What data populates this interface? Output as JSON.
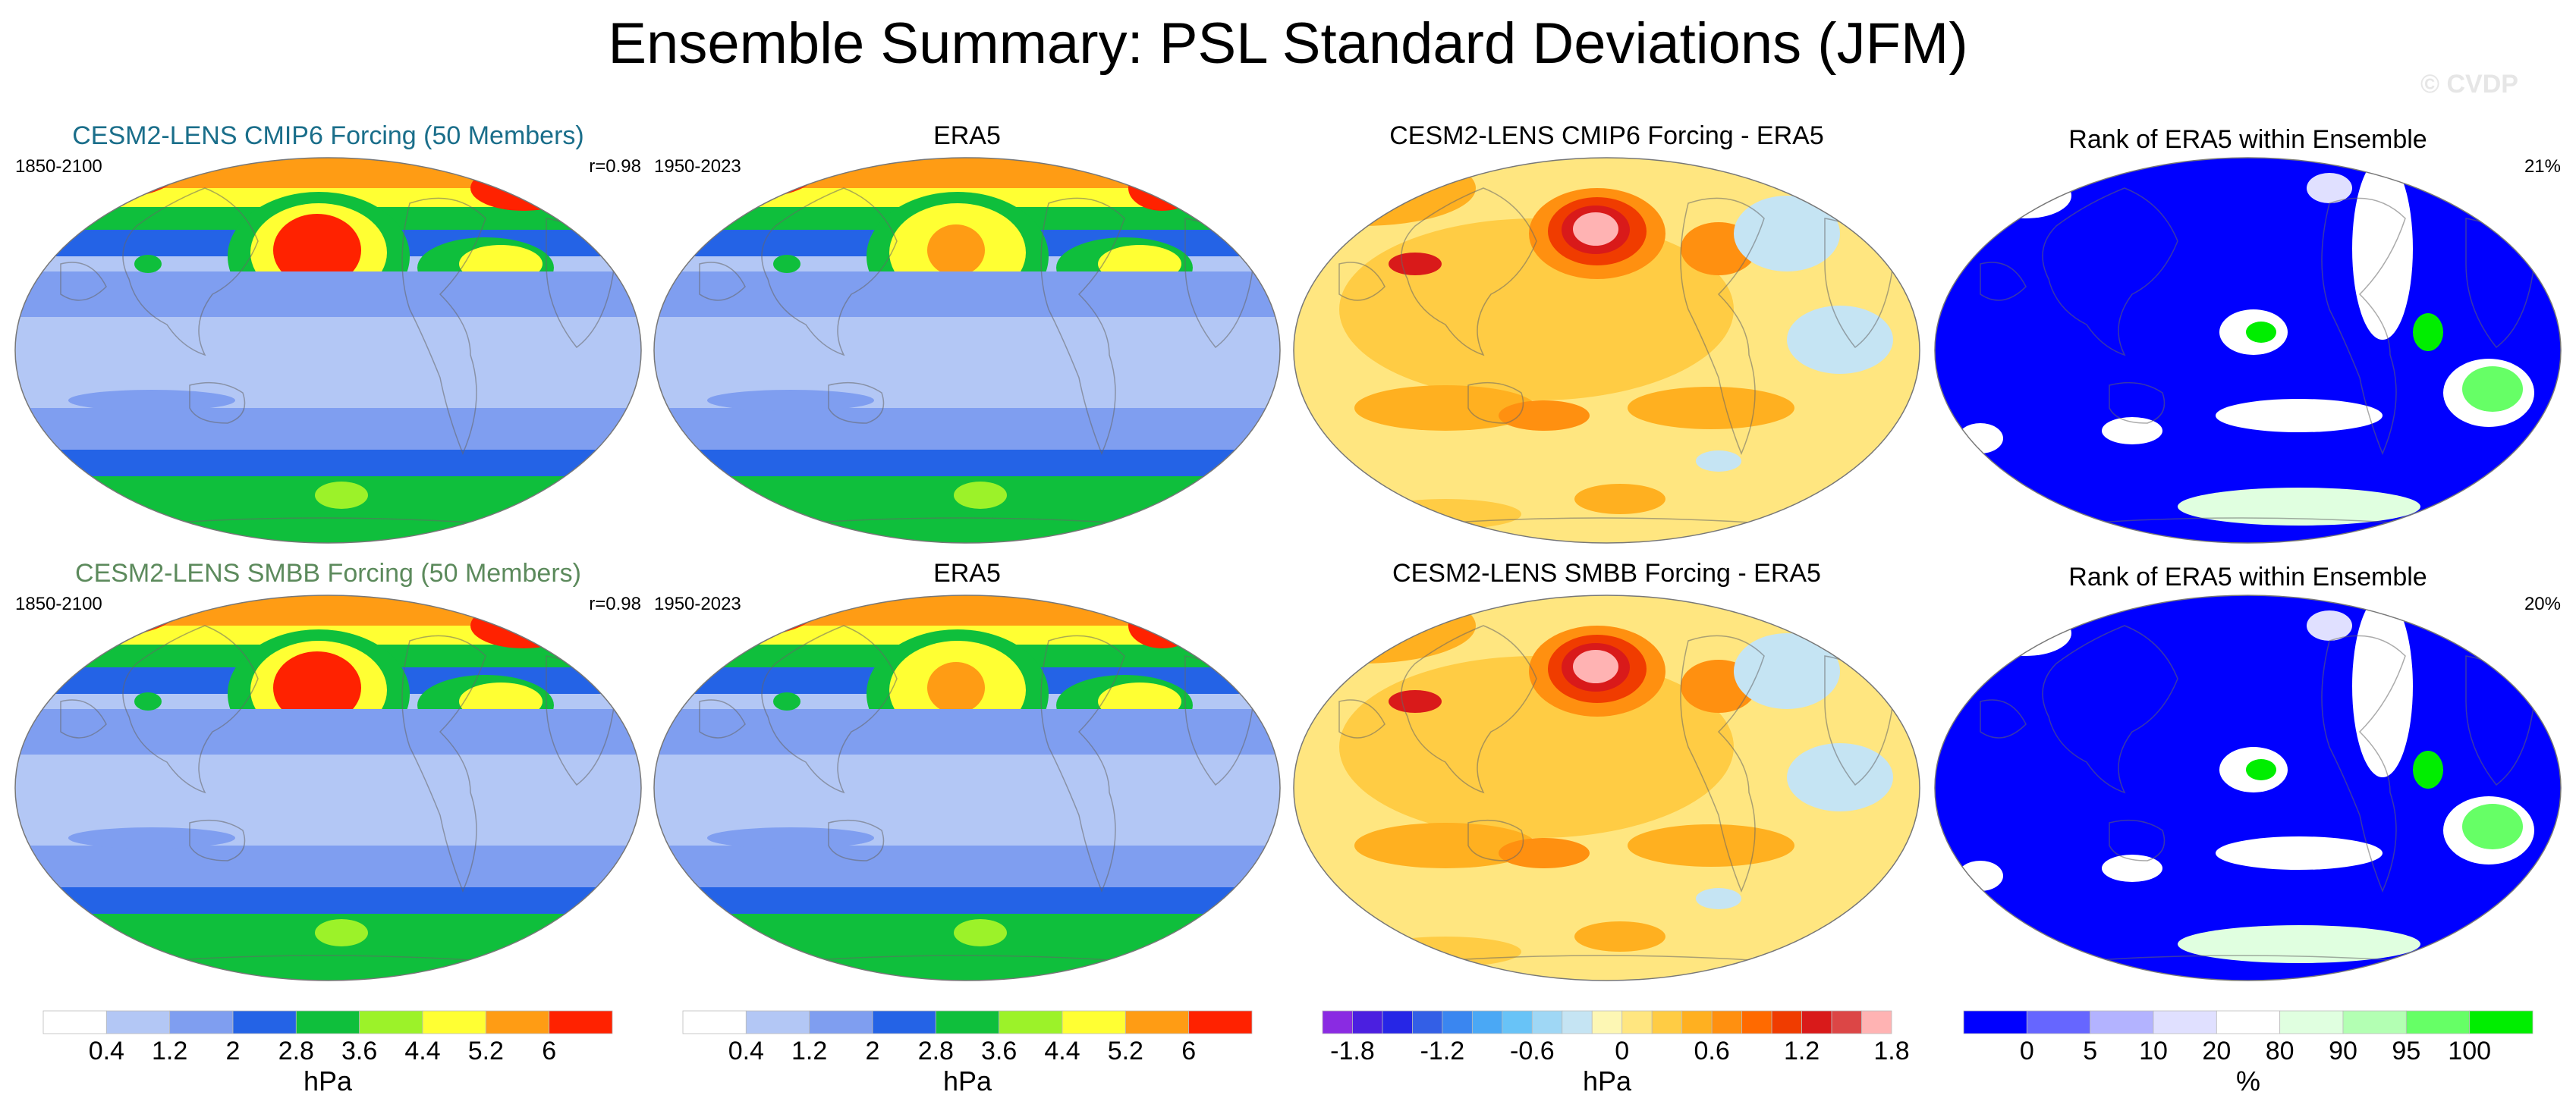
{
  "figure": {
    "title": "Ensemble Summary: PSL Standard Deviations (JFM)",
    "watermark": "© CVDP"
  },
  "panels": [
    {
      "title": "CESM2-LENS CMIP6 Forcing (50 Members)",
      "left": "1850-2100",
      "right": "r=0.98",
      "title_color": "#1a6e8a",
      "kind": "stddev_model"
    },
    {
      "title": "ERA5",
      "left": "1950-2023",
      "right": "",
      "title_color": "#000000",
      "kind": "stddev_obs"
    },
    {
      "title": "CESM2-LENS CMIP6 Forcing - ERA5",
      "left": "",
      "right": "",
      "title_color": "#000000",
      "kind": "difference"
    },
    {
      "title": "Rank of ERA5 within Ensemble",
      "left": "",
      "right": "21%",
      "title_color": "#000000",
      "kind": "rank"
    },
    {
      "title": "CESM2-LENS SMBB Forcing (50 Members)",
      "left": "1850-2100",
      "right": "r=0.98",
      "title_color": "#5c8a5c",
      "kind": "stddev_model"
    },
    {
      "title": "ERA5",
      "left": "1950-2023",
      "right": "",
      "title_color": "#000000",
      "kind": "stddev_obs"
    },
    {
      "title": "CESM2-LENS SMBB Forcing - ERA5",
      "left": "",
      "right": "",
      "title_color": "#000000",
      "kind": "difference"
    },
    {
      "title": "Rank of ERA5 within Ensemble",
      "left": "",
      "right": "20%",
      "title_color": "#000000",
      "kind": "rank"
    }
  ],
  "colorbars": [
    {
      "unit": "hPa",
      "labels": [
        "0.4",
        "1.2",
        "2",
        "2.8",
        "3.6",
        "4.4",
        "5.2",
        "6"
      ],
      "colors": [
        "#ffffff",
        "#b3c7f5",
        "#7f9ef0",
        "#2463e6",
        "#0fbf3c",
        "#9cf229",
        "#ffff33",
        "#ff9c14",
        "#ff2200"
      ]
    },
    {
      "unit": "hPa",
      "labels": [
        "0.4",
        "1.2",
        "2",
        "2.8",
        "3.6",
        "4.4",
        "5.2",
        "6"
      ],
      "colors": [
        "#ffffff",
        "#b3c7f5",
        "#7f9ef0",
        "#2463e6",
        "#0fbf3c",
        "#9cf229",
        "#ffff33",
        "#ff9c14",
        "#ff2200"
      ]
    },
    {
      "unit": "hPa",
      "labels": [
        "-1.8",
        "-1.2",
        "-0.6",
        "0",
        "0.6",
        "1.2",
        "1.8"
      ],
      "colors": [
        "#8a2be2",
        "#4b1fe0",
        "#2626e6",
        "#335fe6",
        "#3a86f0",
        "#4aa8f5",
        "#68c3f7",
        "#9fd7f5",
        "#c5e4f3",
        "#fdf7b4",
        "#ffe680",
        "#ffcc44",
        "#ffb020",
        "#ff9010",
        "#ff6a00",
        "#f03c00",
        "#d91a1a",
        "#dc4646",
        "#ffb3b3"
      ]
    },
    {
      "unit": "%",
      "labels": [
        "0",
        "5",
        "10",
        "20",
        "80",
        "90",
        "95",
        "100"
      ],
      "colors": [
        "#0000ff",
        "#6666ff",
        "#b3b3ff",
        "#e0e0ff",
        "#ffffff",
        "#e0ffe0",
        "#b3ffb3",
        "#66ff66",
        "#00ee00"
      ]
    }
  ]
}
